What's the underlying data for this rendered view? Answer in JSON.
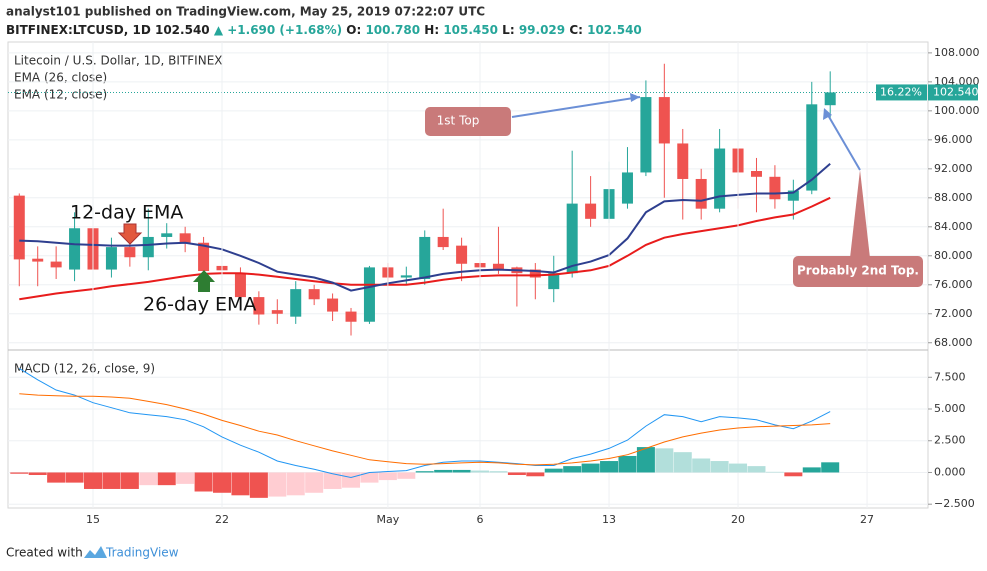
{
  "header": {
    "line1": "analyst101 published on TradingView.com, May 25, 2019 07:22:07 UTC",
    "symbol": "BITFINEX:LTCUSD, 1D",
    "price": "102.540",
    "change": "▲ +1.690 (+1.68%)",
    "ohlc": [
      [
        "O:",
        "100.780"
      ],
      [
        "H:",
        "105.450"
      ],
      [
        "L:",
        "99.029"
      ],
      [
        "C:",
        "102.540"
      ]
    ]
  },
  "chart_data": [
    {
      "type": "candlestick",
      "title": "Litecoin / U.S. Dollar, 1D, BITFINEX",
      "categories": [
        "Apr 11",
        "Apr 12",
        "Apr 13",
        "Apr 14",
        "Apr 15",
        "Apr 16",
        "Apr 17",
        "Apr 18",
        "Apr 19",
        "Apr 20",
        "Apr 21",
        "Apr 22",
        "Apr 23",
        "Apr 24",
        "Apr 25",
        "Apr 26",
        "Apr 27",
        "Apr 28",
        "Apr 29",
        "Apr 30",
        "May 1",
        "May 2",
        "May 3",
        "May 4",
        "May 5",
        "May 6",
        "May 7",
        "May 8",
        "May 9",
        "May 10",
        "May 11",
        "May 12",
        "May 13",
        "May 14",
        "May 15",
        "May 16",
        "May 17",
        "May 18",
        "May 19",
        "May 20",
        "May 21",
        "May 22",
        "May 23",
        "May 24",
        "May 25"
      ],
      "open": [
        88.3,
        79.6,
        79.2,
        78.1,
        83.8,
        78.1,
        81.2,
        79.8,
        82.6,
        83.1,
        81.8,
        78.6,
        77.6,
        74.3,
        72.5,
        71.6,
        75.4,
        74.1,
        72.3,
        70.9,
        78.4,
        77.0,
        76.8,
        82.6,
        81.4,
        79.0,
        78.9,
        78.4,
        78.1,
        75.4,
        77.6,
        87.2,
        85.1,
        87.2,
        91.5,
        101.9,
        95.5,
        90.6,
        86.5,
        94.8,
        91.7,
        90.9,
        87.6,
        89.0,
        100.78
      ],
      "high": [
        88.6,
        81.3,
        81.3,
        86.0,
        84.5,
        82.5,
        83.0,
        86.5,
        84.5,
        84.0,
        82.6,
        80.0,
        78.4,
        75.1,
        74.0,
        76.5,
        76.0,
        74.8,
        72.8,
        78.6,
        79.0,
        78.5,
        83.5,
        86.5,
        82.5,
        81.5,
        84.0,
        78.5,
        79.0,
        80.0,
        94.5,
        91.0,
        93.0,
        95.0,
        104.2,
        106.5,
        97.5,
        92.0,
        97.5,
        94.8,
        93.5,
        92.5,
        90.5,
        104.0,
        105.45
      ],
      "low": [
        75.8,
        75.8,
        76.8,
        76.5,
        75.1,
        77.0,
        78.5,
        78.0,
        81.0,
        80.5,
        76.5,
        76.5,
        72.5,
        70.5,
        70.6,
        70.6,
        73.2,
        71.0,
        69.0,
        70.6,
        75.8,
        76.0,
        76.0,
        80.8,
        76.5,
        75.8,
        77.5,
        73.0,
        74.0,
        73.6,
        77.0,
        84.0,
        84.5,
        86.5,
        91.0,
        88.0,
        85.0,
        85.0,
        86.0,
        86.5,
        86.0,
        86.5,
        85.0,
        88.5,
        99.029
      ],
      "close": [
        79.5,
        79.2,
        78.4,
        83.8,
        78.1,
        81.2,
        79.8,
        82.6,
        83.1,
        81.8,
        77.9,
        78.0,
        74.3,
        71.9,
        72.0,
        75.4,
        74.0,
        72.3,
        70.9,
        78.4,
        77.0,
        77.3,
        82.6,
        81.2,
        78.9,
        78.4,
        78.1,
        77.6,
        77.0,
        77.6,
        87.2,
        85.1,
        89.2,
        91.5,
        101.9,
        95.5,
        90.6,
        86.5,
        94.8,
        91.5,
        90.9,
        87.8,
        89.0,
        100.9,
        102.54
      ],
      "up_color": "#26a69a",
      "down_color": "#ef5350",
      "series": [
        {
          "name": "EMA (26, close)",
          "color": "#e81c1c",
          "values": [
            74.0,
            74.4,
            74.8,
            75.1,
            75.4,
            75.8,
            76.1,
            76.4,
            76.8,
            77.2,
            77.5,
            77.6,
            77.6,
            77.4,
            77.1,
            76.8,
            76.5,
            76.2,
            76.0,
            76.0,
            76.0,
            76.0,
            76.3,
            76.7,
            77.0,
            77.2,
            77.3,
            77.3,
            77.3,
            77.4,
            77.7,
            78.0,
            78.6,
            80.0,
            81.5,
            82.5,
            83.0,
            83.4,
            83.8,
            84.2,
            84.8,
            85.3,
            85.7,
            86.8,
            88.0
          ]
        },
        {
          "name": "EMA (12, close)",
          "color": "#2e3f8f",
          "values": [
            82.1,
            82.0,
            81.8,
            81.6,
            81.5,
            81.4,
            81.4,
            81.5,
            81.7,
            81.8,
            81.4,
            80.9,
            80.0,
            79.0,
            77.8,
            77.4,
            77.0,
            76.3,
            75.2,
            75.7,
            76.2,
            76.6,
            77.0,
            77.5,
            77.8,
            78.0,
            78.1,
            78.0,
            77.9,
            77.7,
            78.6,
            79.2,
            80.1,
            82.4,
            86.0,
            87.5,
            87.7,
            87.6,
            88.2,
            88.4,
            88.6,
            88.6,
            88.7,
            90.5,
            92.7
          ]
        }
      ],
      "ylim": [
        67,
        109.5
      ],
      "yticks": [
        {
          "value": 68,
          "label": "68.000"
        },
        {
          "value": 72,
          "label": "72.000"
        },
        {
          "value": 76,
          "label": "76.000"
        },
        {
          "value": 80,
          "label": "80.000"
        },
        {
          "value": 84,
          "label": "84.000"
        },
        {
          "value": 88,
          "label": "88.000"
        },
        {
          "value": 92,
          "label": "92.000"
        },
        {
          "value": 96,
          "label": "96.000"
        },
        {
          "value": 100,
          "label": "100.000"
        },
        {
          "value": 104,
          "label": "104.000"
        },
        {
          "value": 108,
          "label": "108.000"
        }
      ],
      "grid": true,
      "last_price": {
        "value": 102.54,
        "label": "102.540"
      },
      "change_label": "16.22%",
      "annotations": [
        "12-day EMA",
        "26-day EMA",
        "1st Top",
        "Probably 2nd Top."
      ]
    },
    {
      "type": "macd",
      "title": "MACD (12, 26, close, 9)",
      "categories": [
        "Apr 11",
        "Apr 12",
        "Apr 13",
        "Apr 14",
        "Apr 15",
        "Apr 16",
        "Apr 17",
        "Apr 18",
        "Apr 19",
        "Apr 20",
        "Apr 21",
        "Apr 22",
        "Apr 23",
        "Apr 24",
        "Apr 25",
        "Apr 26",
        "Apr 27",
        "Apr 28",
        "Apr 29",
        "Apr 30",
        "May 1",
        "May 2",
        "May 3",
        "May 4",
        "May 5",
        "May 6",
        "May 7",
        "May 8",
        "May 9",
        "May 10",
        "May 11",
        "May 12",
        "May 13",
        "May 14",
        "May 15",
        "May 16",
        "May 17",
        "May 18",
        "May 19",
        "May 20",
        "May 21",
        "May 22",
        "May 23",
        "May 24",
        "May 25"
      ],
      "histogram": [
        -0.1,
        -0.2,
        -0.8,
        -0.8,
        -1.3,
        -1.3,
        -1.3,
        -1.0,
        -1.0,
        -0.9,
        -1.5,
        -1.6,
        -1.8,
        -2.0,
        -1.9,
        -1.8,
        -1.6,
        -1.3,
        -1.2,
        -0.8,
        -0.6,
        -0.5,
        0.1,
        0.2,
        0.2,
        0.15,
        0.1,
        -0.2,
        -0.3,
        0.3,
        0.5,
        0.7,
        0.9,
        1.3,
        2.0,
        1.9,
        1.6,
        1.1,
        0.9,
        0.7,
        0.5,
        0.05,
        -0.3,
        0.4,
        0.8
      ],
      "histogram_colors": {
        "pos_rising": "#26a69a",
        "pos_falling": "#b2dfdb",
        "neg_falling": "#ef5350",
        "neg_rising": "#ffcdd2"
      },
      "series": [
        {
          "color": "#2196f3",
          "values": [
            8.2,
            7.3,
            6.5,
            6.1,
            5.5,
            5.1,
            4.7,
            4.55,
            4.4,
            4.15,
            3.6,
            2.8,
            2.15,
            1.6,
            0.9,
            0.55,
            0.25,
            -0.1,
            -0.4,
            0.0,
            0.08,
            0.15,
            0.55,
            0.8,
            0.9,
            0.9,
            0.8,
            0.7,
            0.55,
            0.55,
            1.1,
            1.45,
            1.9,
            2.55,
            3.65,
            4.55,
            4.4,
            4.0,
            4.4,
            4.3,
            4.15,
            3.75,
            3.45,
            4.05,
            4.8
          ]
        },
        {
          "color": "#ff6d00",
          "values": [
            6.2,
            6.1,
            6.05,
            6.0,
            6.0,
            5.95,
            5.85,
            5.6,
            5.35,
            5.0,
            4.6,
            4.1,
            3.7,
            3.25,
            2.95,
            2.5,
            2.1,
            1.7,
            1.35,
            1.0,
            0.85,
            0.7,
            0.65,
            0.7,
            0.75,
            0.8,
            0.75,
            0.65,
            0.6,
            0.65,
            0.75,
            0.9,
            1.1,
            1.4,
            1.9,
            2.4,
            2.8,
            3.1,
            3.35,
            3.5,
            3.6,
            3.65,
            3.7,
            3.75,
            3.85
          ]
        }
      ],
      "ylim": [
        -2.8,
        9.65
      ],
      "yticks": [
        {
          "value": -2.5,
          "label": "−2.500"
        },
        {
          "value": 0,
          "label": "0.000"
        },
        {
          "value": 2.5,
          "label": "2.500"
        },
        {
          "value": 5,
          "label": "5.000"
        },
        {
          "value": 7.5,
          "label": "7.500"
        }
      ],
      "xticks": [
        {
          "value": 4,
          "label": "15"
        },
        {
          "value": 11,
          "label": "22"
        },
        {
          "value": 20,
          "label": "May"
        },
        {
          "value": 25,
          "label": "6"
        },
        {
          "value": 32,
          "label": "13"
        },
        {
          "value": 39,
          "label": "20"
        },
        {
          "value": 46,
          "label": "27"
        }
      ],
      "grid": true
    }
  ],
  "footer": {
    "created": "Created with",
    "brand": "TradingView"
  }
}
